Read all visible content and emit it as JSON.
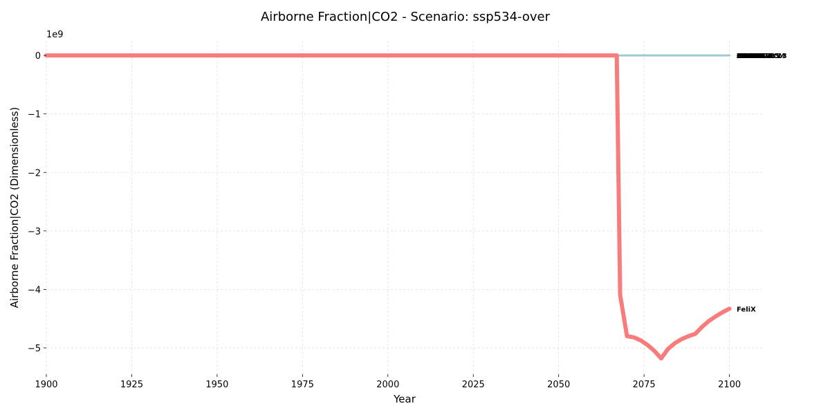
{
  "chart_data": {
    "type": "line",
    "title": "Airborne Fraction|CO2 - Scenario: ssp534-over",
    "xlabel": "Year",
    "ylabel": "Airborne Fraction|CO2 (Dimensionless)",
    "offset_text": "1e9",
    "y_unit_multiplier": 1000000000,
    "xlim": [
      1900,
      2110
    ],
    "ylim": [
      -5.45,
      0.25
    ],
    "x_ticks": [
      1900,
      1925,
      1950,
      1975,
      2000,
      2025,
      2050,
      2075,
      2100
    ],
    "x_tick_labels": [
      "1900",
      "1925",
      "1950",
      "1975",
      "2000",
      "2025",
      "2050",
      "2075",
      "2100"
    ],
    "y_ticks": [
      0,
      -1,
      -2,
      -3,
      -4,
      -5
    ],
    "y_tick_labels": [
      "0",
      "−1",
      "−2",
      "−3",
      "−4",
      "−5"
    ],
    "grid": true,
    "colors": {
      "felix": "#f87c7c",
      "others": "#9ec9d1"
    },
    "overlapping_labels": [
      "MAGICC7",
      "OSCARv3.1",
      "CICERO-SCM",
      "FaIR1.6",
      "MCE-v1-2",
      "ACC2",
      "Hector",
      "AR6-SYR",
      "MAGICC7.5.3",
      "OSCAR v3"
    ],
    "series": [
      {
        "name": "MAGICC7",
        "color": "#9ec9d1",
        "x": [
          1900,
          2100
        ],
        "y": [
          0,
          0
        ]
      },
      {
        "name": "FeliX",
        "color": "#f87c7c",
        "x": [
          1900,
          2067,
          2068,
          2070,
          2072,
          2074,
          2076,
          2078,
          2080,
          2082,
          2084,
          2086,
          2088,
          2090,
          2092,
          2094,
          2096,
          2098,
          2100
        ],
        "y": [
          0,
          0,
          -4.1,
          -4.8,
          -4.82,
          -4.87,
          -4.95,
          -5.05,
          -5.18,
          -5.02,
          -4.92,
          -4.85,
          -4.8,
          -4.76,
          -4.64,
          -4.54,
          -4.46,
          -4.39,
          -4.33
        ]
      }
    ]
  }
}
